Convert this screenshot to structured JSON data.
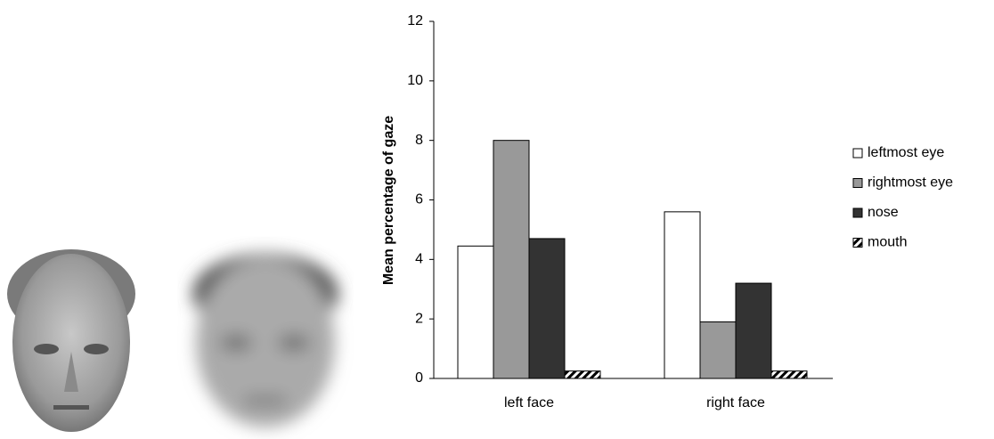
{
  "chart_data": {
    "type": "bar",
    "y_label": "Mean percentage of gaze",
    "categories": [
      "left face",
      "right face"
    ],
    "series": [
      {
        "name": "leftmost eye",
        "color": "#ffffff",
        "values": [
          4.45,
          5.6
        ]
      },
      {
        "name": "rightmost eye",
        "color": "#999999",
        "values": [
          8.0,
          1.9
        ]
      },
      {
        "name": "nose",
        "color": "#333333",
        "values": [
          4.7,
          3.2
        ]
      },
      {
        "name": "mouth",
        "color": "#000000",
        "pattern": "diagonal",
        "values": [
          0.25,
          0.25
        ]
      }
    ],
    "ylim": [
      0,
      12
    ],
    "yticks": [
      0,
      2,
      4,
      6,
      8,
      10,
      12
    ],
    "grid": false,
    "legend": "right"
  }
}
